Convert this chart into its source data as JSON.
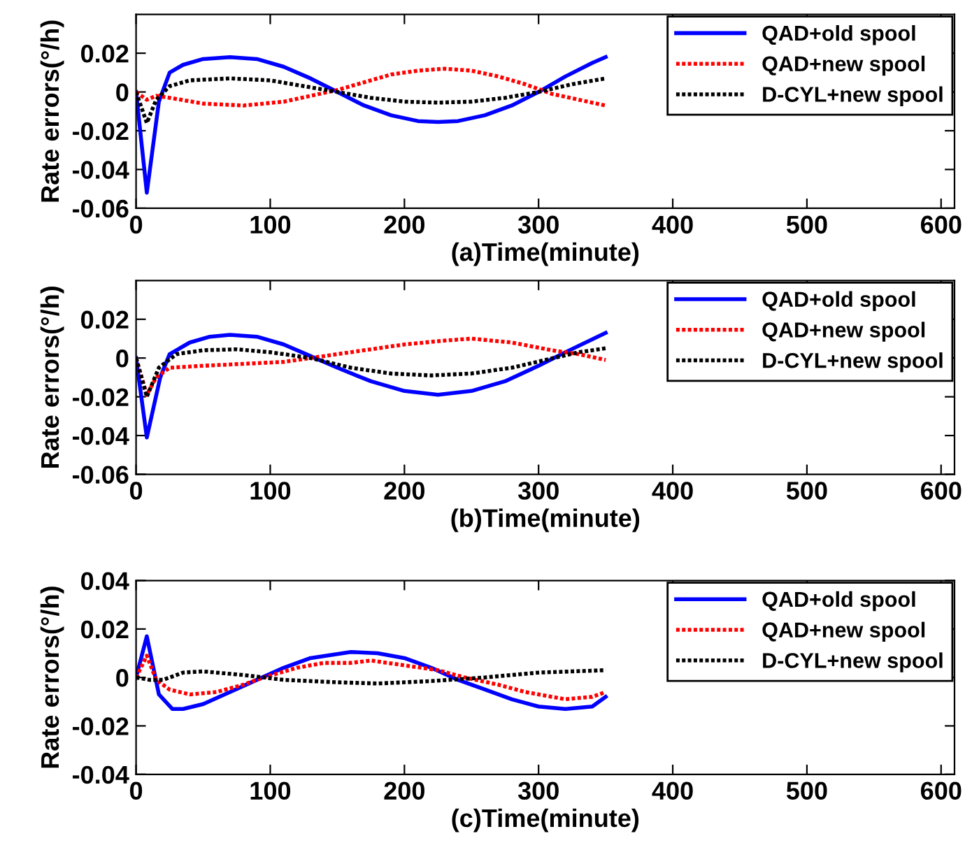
{
  "chart_data": [
    {
      "type": "line",
      "xlabel": "(a)Time(minute)",
      "ylabel": "Rate errors(°/h)",
      "xlim": [
        0,
        610
      ],
      "xticks": [
        0,
        100,
        200,
        300,
        400,
        500,
        600
      ],
      "ylim": [
        -0.06,
        0.04
      ],
      "yticks": [
        -0.06,
        -0.04,
        -0.02,
        0,
        0.02
      ],
      "legend": "top right",
      "grid": false,
      "series": [
        {
          "name": "QAD+old spool",
          "color": "#0000ff",
          "line_style": "solid",
          "x": [
            0,
            8,
            17,
            25,
            35,
            50,
            70,
            90,
            110,
            130,
            150,
            170,
            190,
            210,
            225,
            240,
            260,
            280,
            300,
            320,
            340,
            350
          ],
          "values": [
            0,
            -0.052,
            -0.005,
            0.01,
            0.014,
            0.017,
            0.018,
            0.017,
            0.013,
            0.007,
            0.0,
            -0.007,
            -0.012,
            -0.015,
            -0.0155,
            -0.015,
            -0.012,
            -0.007,
            0.0,
            0.008,
            0.015,
            0.018
          ]
        },
        {
          "name": "QAD+new spool",
          "color": "#ff0000",
          "line_style": "dotted",
          "x": [
            0,
            8,
            15,
            25,
            50,
            80,
            110,
            130,
            150,
            170,
            190,
            210,
            230,
            250,
            270,
            290,
            310,
            330,
            350
          ],
          "values": [
            0,
            -0.004,
            -0.002,
            -0.003,
            -0.006,
            -0.007,
            -0.005,
            -0.002,
            0.001,
            0.005,
            0.009,
            0.011,
            0.012,
            0.011,
            0.008,
            0.004,
            -0.001,
            -0.004,
            -0.007
          ]
        },
        {
          "name": "D-CYL+new spool",
          "color": "#000000",
          "line_style": "dotted",
          "x": [
            0,
            8,
            15,
            25,
            40,
            70,
            100,
            125,
            150,
            175,
            200,
            225,
            250,
            275,
            300,
            325,
            350
          ],
          "values": [
            0,
            -0.016,
            -0.004,
            0.003,
            0.006,
            0.007,
            0.006,
            0.003,
            0.0,
            -0.003,
            -0.005,
            -0.0055,
            -0.005,
            -0.003,
            0.0,
            0.004,
            0.007
          ]
        }
      ]
    },
    {
      "type": "line",
      "xlabel": "(b)Time(minute)",
      "ylabel": "Rate errors(°/h)",
      "xlim": [
        0,
        610
      ],
      "xticks": [
        0,
        100,
        200,
        300,
        400,
        500,
        600
      ],
      "ylim": [
        -0.06,
        0.04
      ],
      "yticks": [
        -0.06,
        -0.04,
        -0.02,
        0,
        0.02
      ],
      "legend": "top right",
      "grid": false,
      "series": [
        {
          "name": "QAD+old spool",
          "color": "#0000ff",
          "line_style": "solid",
          "x": [
            0,
            8,
            18,
            25,
            40,
            55,
            70,
            90,
            110,
            130,
            150,
            175,
            200,
            225,
            250,
            275,
            300,
            320,
            350
          ],
          "values": [
            0,
            -0.041,
            -0.01,
            0.002,
            0.008,
            0.011,
            0.012,
            0.011,
            0.007,
            0.001,
            -0.005,
            -0.012,
            -0.017,
            -0.019,
            -0.017,
            -0.012,
            -0.004,
            0.003,
            0.013
          ]
        },
        {
          "name": "QAD+new spool",
          "color": "#ff0000",
          "line_style": "dotted",
          "x": [
            0,
            8,
            15,
            25,
            50,
            80,
            110,
            140,
            170,
            200,
            230,
            250,
            280,
            310,
            330,
            350
          ],
          "values": [
            0,
            -0.019,
            -0.01,
            -0.005,
            -0.004,
            -0.003,
            -0.002,
            0.001,
            0.004,
            0.007,
            0.009,
            0.01,
            0.008,
            0.004,
            0.002,
            -0.001
          ]
        },
        {
          "name": "D-CYL+new spool",
          "color": "#000000",
          "line_style": "dotted",
          "x": [
            0,
            8,
            17,
            30,
            50,
            75,
            100,
            130,
            160,
            190,
            220,
            250,
            280,
            305,
            330,
            350
          ],
          "values": [
            0,
            -0.02,
            -0.005,
            0.002,
            0.004,
            0.0045,
            0.003,
            0.0,
            -0.005,
            -0.008,
            -0.009,
            -0.008,
            -0.005,
            -0.001,
            0.003,
            0.005
          ]
        }
      ]
    },
    {
      "type": "line",
      "xlabel": "(c)Time(minute)",
      "ylabel": "Rate errors(°/h)",
      "xlim": [
        0,
        610
      ],
      "xticks": [
        0,
        100,
        200,
        300,
        400,
        500,
        600
      ],
      "ylim": [
        -0.04,
        0.04
      ],
      "yticks": [
        -0.04,
        -0.02,
        0,
        0.02,
        0.04
      ],
      "legend": "top right",
      "grid": false,
      "series": [
        {
          "name": "QAD+old spool",
          "color": "#0000ff",
          "line_style": "solid",
          "x": [
            0,
            8,
            17,
            27,
            35,
            50,
            70,
            90,
            110,
            130,
            160,
            180,
            200,
            220,
            240,
            260,
            280,
            300,
            320,
            340,
            350
          ],
          "values": [
            0,
            0.017,
            -0.007,
            -0.013,
            -0.013,
            -0.011,
            -0.006,
            -0.001,
            0.004,
            0.008,
            0.0105,
            0.01,
            0.008,
            0.004,
            -0.001,
            -0.005,
            -0.009,
            -0.012,
            -0.013,
            -0.012,
            -0.008
          ]
        },
        {
          "name": "QAD+new spool",
          "color": "#ff0000",
          "line_style": "dotted",
          "x": [
            0,
            8,
            15,
            25,
            40,
            60,
            80,
            95,
            120,
            140,
            160,
            175,
            200,
            225,
            245,
            270,
            290,
            320,
            340,
            350
          ],
          "values": [
            0,
            0.009,
            -0.001,
            -0.005,
            -0.007,
            -0.006,
            -0.003,
            0.0,
            0.004,
            0.006,
            0.006,
            0.007,
            0.005,
            0.003,
            0.0,
            -0.003,
            -0.006,
            -0.009,
            -0.008,
            -0.006
          ]
        },
        {
          "name": "D-CYL+new spool",
          "color": "#000000",
          "line_style": "dotted",
          "x": [
            0,
            10,
            20,
            35,
            50,
            80,
            110,
            150,
            180,
            220,
            260,
            300,
            350
          ],
          "values": [
            0,
            -0.001,
            -0.001,
            0.002,
            0.0025,
            0.001,
            -0.001,
            -0.002,
            -0.0025,
            -0.0015,
            0.0,
            0.002,
            0.003
          ]
        }
      ]
    }
  ]
}
